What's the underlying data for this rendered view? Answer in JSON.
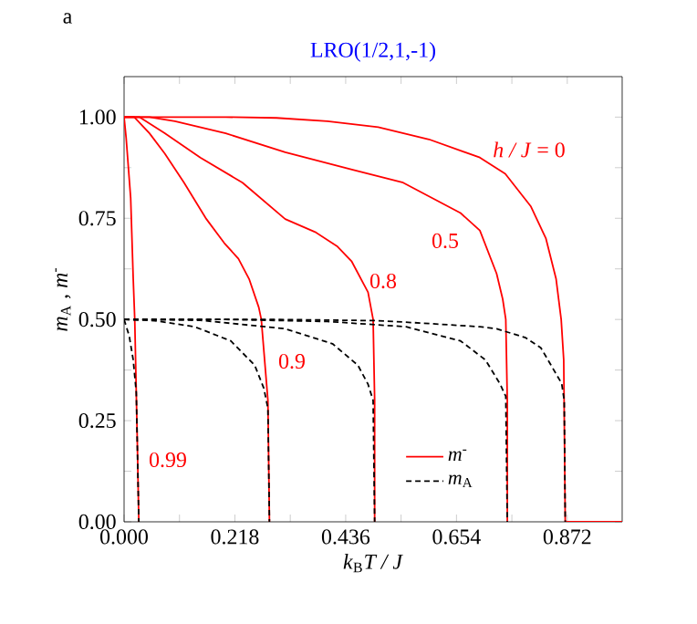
{
  "chart_data": {
    "type": "line",
    "title": "LRO(1/2,1,-1)",
    "xlabel": "*k*$_{B}$*T / J*",
    "ylabel": "*m*$_{A}$ , *m*$^{-}$",
    "xlim": [
      0,
      0.98
    ],
    "ylim": [
      0,
      1.1
    ],
    "xticks": [
      {
        "value": 0,
        "label": "0.000"
      },
      {
        "value": 0.109,
        "label": null
      },
      {
        "value": 0.218,
        "label": "0.218"
      },
      {
        "value": 0.327,
        "label": null
      },
      {
        "value": 0.436,
        "label": "0.436"
      },
      {
        "value": 0.545,
        "label": null
      },
      {
        "value": 0.654,
        "label": "0.654"
      },
      {
        "value": 0.763,
        "label": null
      },
      {
        "value": 0.872,
        "label": "0.872"
      }
    ],
    "yticks": [
      {
        "value": 0,
        "label": "0.00"
      },
      {
        "value": 0.125,
        "label": null
      },
      {
        "value": 0.25,
        "label": "0.25"
      },
      {
        "value": 0.375,
        "label": null
      },
      {
        "value": 0.5,
        "label": "0.50"
      },
      {
        "value": 0.625,
        "label": null
      },
      {
        "value": 0.75,
        "label": "0.75"
      },
      {
        "value": 0.875,
        "label": null
      },
      {
        "value": 1.0,
        "label": "1.00"
      }
    ],
    "legend": "bottom right",
    "marker": "none",
    "grid": false,
    "series": [
      {
        "name": "*m*$^{-}$",
        "color": "#ff0000",
        "line_style": "solid",
        "x": [
          0,
          0.1,
          0.2,
          0.3,
          0.4,
          0.5,
          0.6,
          0.7,
          0.75,
          0.8,
          0.83,
          0.85,
          0.86,
          0.865,
          0.868,
          0.98
        ],
        "values": [
          1,
          1,
          1,
          0.998,
          0.99,
          0.975,
          0.945,
          0.9,
          0.86,
          0.78,
          0.7,
          0.6,
          0.5,
          0.4,
          0,
          0
        ]
      },
      {
        "color": "#ff0000",
        "line_style": "solid",
        "x": [
          0,
          0.05,
          0.1,
          0.2,
          0.317,
          0.45,
          0.549,
          0.662,
          0.7,
          0.733,
          0.745,
          0.751,
          0.754,
          0.754
        ],
        "values": [
          1,
          1,
          0.99,
          0.96,
          0.913,
          0.87,
          0.838,
          0.763,
          0.72,
          0.613,
          0.55,
          0.5,
          0.3,
          0
        ]
      },
      {
        "color": "#ff0000",
        "line_style": "solid",
        "x": [
          0,
          0.03,
          0.08,
          0.15,
          0.233,
          0.317,
          0.376,
          0.42,
          0.448,
          0.48,
          0.49,
          0.493,
          0.493
        ],
        "values": [
          1,
          1,
          0.96,
          0.9,
          0.838,
          0.748,
          0.716,
          0.68,
          0.643,
          0.567,
          0.5,
          0.3,
          0
        ]
      },
      {
        "color": "#ff0000",
        "line_style": "solid",
        "x": [
          0,
          0.02,
          0.05,
          0.08,
          0.118,
          0.162,
          0.197,
          0.225,
          0.246,
          0.265,
          0.27,
          0.283,
          0.286
        ],
        "values": [
          1,
          1,
          0.96,
          0.91,
          0.838,
          0.748,
          0.689,
          0.65,
          0.6,
          0.53,
          0.5,
          0.3,
          0
        ]
      },
      {
        "color": "#ff0000",
        "line_style": "solid",
        "x": [
          0,
          0.004,
          0.013,
          0.018,
          0.021,
          0.026,
          0.029
        ],
        "values": [
          1,
          0.95,
          0.8,
          0.6,
          0.5,
          0.2,
          0
        ]
      },
      {
        "name": "*m*$_{A}$",
        "color": "#000000",
        "line_style": "dashed",
        "x": [
          0,
          0.3,
          0.5,
          0.6,
          0.7,
          0.733,
          0.79,
          0.82,
          0.84,
          0.861,
          0.866,
          0.868
        ],
        "values": [
          0.5,
          0.5,
          0.497,
          0.49,
          0.482,
          0.477,
          0.455,
          0.43,
          0.387,
          0.342,
          0.3,
          0
        ]
      },
      {
        "color": "#000000",
        "line_style": "dashed",
        "x": [
          0,
          0.2,
          0.4,
          0.555,
          0.662,
          0.711,
          0.74,
          0.751,
          0.754
        ],
        "values": [
          0.5,
          0.5,
          0.495,
          0.482,
          0.447,
          0.4,
          0.34,
          0.31,
          0
        ]
      },
      {
        "color": "#000000",
        "line_style": "dashed",
        "x": [
          0,
          0.15,
          0.317,
          0.41,
          0.46,
          0.48,
          0.49,
          0.493
        ],
        "values": [
          0.5,
          0.498,
          0.477,
          0.44,
          0.387,
          0.34,
          0.3,
          0
        ]
      },
      {
        "color": "#000000",
        "line_style": "dashed",
        "x": [
          0,
          0.06,
          0.139,
          0.21,
          0.257,
          0.275,
          0.283,
          0.286
        ],
        "values": [
          0.5,
          0.497,
          0.482,
          0.447,
          0.387,
          0.33,
          0.28,
          0
        ]
      },
      {
        "color": "#000000",
        "line_style": "dashed",
        "x": [
          0,
          0.01,
          0.018,
          0.024,
          0.029
        ],
        "values": [
          0.5,
          0.46,
          0.4,
          0.32,
          0
        ]
      }
    ],
    "annotations": [
      "a",
      "*h / J* = 0",
      "0.5",
      "0.8",
      "0.9",
      "0.99"
    ]
  }
}
